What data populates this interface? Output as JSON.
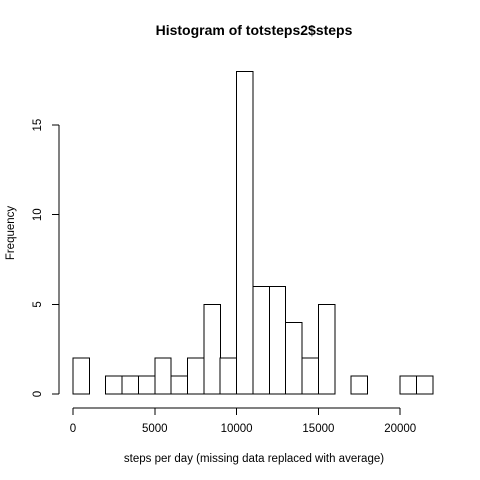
{
  "chart_data": {
    "type": "bar",
    "title": "Histogram of totsteps2$steps",
    "xlabel": "steps per day (missing data replaced with average)",
    "ylabel": "Frequency",
    "bin_width": 1000,
    "bin_start": 0,
    "values": [
      2,
      0,
      1,
      1,
      1,
      2,
      1,
      2,
      5,
      2,
      18,
      6,
      6,
      4,
      2,
      5,
      0,
      1,
      0,
      0,
      1,
      1
    ],
    "xlim": [
      0,
      22000
    ],
    "ylim": [
      0,
      18
    ],
    "x_ticks": [
      0,
      5000,
      10000,
      15000,
      20000
    ],
    "y_ticks": [
      0,
      5,
      10,
      15
    ],
    "grid": false,
    "colors": {
      "bar_fill": "#ffffff",
      "bar_stroke": "#000000"
    }
  }
}
